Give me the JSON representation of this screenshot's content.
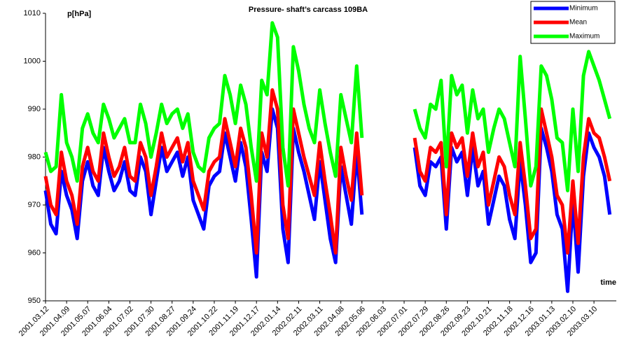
{
  "chart_data": {
    "type": "line",
    "title": "Pressure- shaft’s carcass 109BA",
    "y_label": "p[hPa]",
    "x_label": "time",
    "legend": "top-right",
    "ylim": [
      950,
      1010
    ],
    "yticks": [
      950,
      960,
      970,
      980,
      990,
      1000,
      1010
    ],
    "categories": [
      "2001.03.12",
      null,
      null,
      null,
      "2001.04.09",
      null,
      null,
      null,
      "2001.05.07",
      null,
      null,
      null,
      "2001.06.04",
      null,
      null,
      null,
      "2001.07.02",
      null,
      null,
      null,
      "2001.07.30",
      null,
      null,
      null,
      "2001.08.27",
      null,
      null,
      null,
      "2001.09.24",
      null,
      null,
      null,
      "2001.10.22",
      null,
      null,
      null,
      "2001.11.19",
      null,
      null,
      null,
      "2001.12.17",
      null,
      null,
      null,
      "2002.01.14",
      null,
      null,
      null,
      "2002.02.11",
      null,
      null,
      null,
      "2002.03.11",
      null,
      null,
      null,
      "2002.04.08",
      null,
      null,
      null,
      "2002.05.06",
      null,
      null,
      null,
      "2002.06.03",
      null,
      null,
      null,
      "2002.07.01",
      null,
      null,
      null,
      "2002.07.29",
      null,
      null,
      null,
      "2002.08.26",
      null,
      null,
      null,
      "2002.09.23",
      null,
      null,
      null,
      "2002.10.21",
      null,
      null,
      null,
      "2002.11.18",
      null,
      null,
      null,
      "2002.12.16",
      null,
      null,
      null,
      "2003.01.13",
      null,
      null,
      null,
      "2003.02.10",
      null,
      null,
      null,
      "2003.03.10",
      null,
      null,
      null
    ],
    "series": [
      {
        "name": "Minimum",
        "color": "#0000ff",
        "values": [
          973,
          966,
          964,
          977,
          972,
          969,
          963,
          975,
          979,
          974,
          972,
          982,
          977,
          973,
          975,
          979,
          973,
          972,
          980,
          977,
          968,
          975,
          982,
          977,
          979,
          981,
          976,
          980,
          971,
          968,
          965,
          974,
          976,
          977,
          985,
          980,
          975,
          983,
          978,
          967,
          955,
          981,
          977,
          990,
          986,
          965,
          958,
          986,
          981,
          977,
          972,
          967,
          979,
          971,
          963,
          958,
          978,
          972,
          966,
          981,
          968,
          null,
          null,
          null,
          null,
          null,
          null,
          null,
          null,
          null,
          982,
          974,
          972,
          979,
          978,
          980,
          965,
          982,
          979,
          981,
          972,
          982,
          974,
          977,
          966,
          971,
          976,
          974,
          967,
          963,
          979,
          970,
          958,
          960,
          986,
          982,
          977,
          968,
          965,
          952,
          971,
          956,
          976,
          985,
          982,
          980,
          976,
          968
        ]
      },
      {
        "name": "Mean",
        "color": "#ff0000",
        "values": [
          976,
          970,
          968,
          981,
          975,
          972,
          966,
          978,
          982,
          977,
          975,
          985,
          980,
          976,
          978,
          982,
          976,
          975,
          983,
          980,
          972,
          978,
          985,
          980,
          982,
          984,
          979,
          983,
          975,
          972,
          969,
          977,
          979,
          980,
          988,
          983,
          978,
          986,
          982,
          972,
          960,
          985,
          980,
          994,
          990,
          970,
          963,
          990,
          985,
          980,
          976,
          972,
          983,
          975,
          968,
          960,
          982,
          976,
          971,
          985,
          972,
          null,
          null,
          null,
          null,
          null,
          null,
          null,
          null,
          null,
          984,
          977,
          975,
          982,
          981,
          983,
          968,
          985,
          982,
          984,
          976,
          985,
          978,
          981,
          970,
          975,
          980,
          978,
          972,
          968,
          983,
          974,
          963,
          965,
          990,
          985,
          980,
          972,
          970,
          960,
          975,
          962,
          980,
          988,
          985,
          984,
          980,
          975
        ]
      },
      {
        "name": "Maximum",
        "color": "#00ff00",
        "values": [
          981,
          977,
          978,
          993,
          983,
          980,
          975,
          986,
          989,
          985,
          983,
          991,
          988,
          984,
          986,
          988,
          983,
          983,
          991,
          987,
          980,
          985,
          991,
          987,
          989,
          990,
          986,
          989,
          981,
          978,
          977,
          984,
          986,
          987,
          997,
          993,
          987,
          995,
          991,
          982,
          975,
          996,
          993,
          1008,
          1005,
          982,
          974,
          1003,
          998,
          991,
          986,
          983,
          994,
          987,
          981,
          976,
          993,
          988,
          983,
          999,
          984,
          null,
          null,
          null,
          null,
          null,
          null,
          null,
          null,
          null,
          990,
          986,
          984,
          991,
          990,
          996,
          978,
          997,
          993,
          995,
          985,
          994,
          988,
          990,
          981,
          986,
          990,
          988,
          983,
          978,
          1001,
          988,
          974,
          978,
          999,
          997,
          992,
          984,
          983,
          973,
          990,
          977,
          997,
          1002,
          999,
          996,
          992,
          988
        ]
      }
    ]
  }
}
